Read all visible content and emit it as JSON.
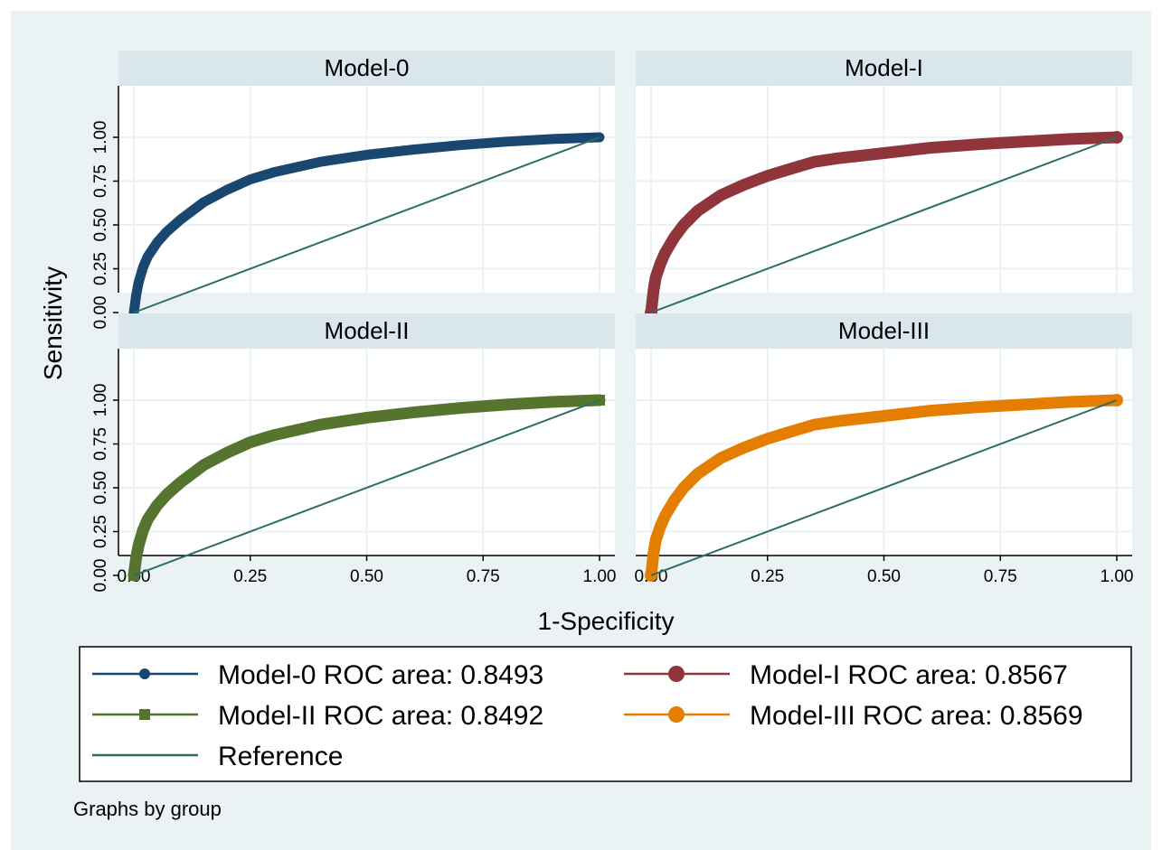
{
  "chart_data": {
    "type": "line",
    "ylabel": "Sensitivity",
    "xlabel": "1-Specificity",
    "note": "Graphs by group",
    "xlim": [
      0,
      1
    ],
    "ylim": [
      0,
      1
    ],
    "x_ticks": [
      "0.00",
      "0.25",
      "0.50",
      "0.75",
      "1.00"
    ],
    "y_ticks": [
      "0.00",
      "0.25",
      "0.50",
      "0.75",
      "1.00"
    ],
    "grid": true,
    "legend_position": "bottom",
    "panels": [
      {
        "title": "Model-0",
        "series_ref": 0,
        "x": [
          0,
          0.005,
          0.01,
          0.02,
          0.03,
          0.05,
          0.07,
          0.1,
          0.15,
          0.2,
          0.25,
          0.3,
          0.4,
          0.5,
          0.6,
          0.7,
          0.8,
          0.9,
          1.0
        ],
        "y": [
          0,
          0.1,
          0.17,
          0.26,
          0.32,
          0.4,
          0.46,
          0.53,
          0.63,
          0.7,
          0.76,
          0.8,
          0.86,
          0.9,
          0.93,
          0.955,
          0.975,
          0.99,
          1.0
        ]
      },
      {
        "title": "Model-I",
        "series_ref": 1,
        "x": [
          0,
          0.005,
          0.01,
          0.02,
          0.03,
          0.05,
          0.07,
          0.1,
          0.15,
          0.2,
          0.25,
          0.3,
          0.35,
          0.4,
          0.5,
          0.6,
          0.7,
          0.8,
          0.9,
          1.0
        ],
        "y": [
          0,
          0.12,
          0.2,
          0.28,
          0.34,
          0.43,
          0.5,
          0.58,
          0.67,
          0.73,
          0.78,
          0.82,
          0.86,
          0.88,
          0.91,
          0.94,
          0.96,
          0.975,
          0.99,
          1.0
        ]
      },
      {
        "title": "Model-II",
        "series_ref": 2,
        "x": [
          0,
          0.005,
          0.01,
          0.02,
          0.03,
          0.05,
          0.07,
          0.1,
          0.15,
          0.2,
          0.25,
          0.3,
          0.4,
          0.5,
          0.6,
          0.7,
          0.8,
          0.9,
          1.0
        ],
        "y": [
          0,
          0.1,
          0.17,
          0.26,
          0.32,
          0.4,
          0.46,
          0.53,
          0.63,
          0.7,
          0.76,
          0.8,
          0.86,
          0.9,
          0.93,
          0.955,
          0.975,
          0.99,
          1.0
        ]
      },
      {
        "title": "Model-III",
        "series_ref": 3,
        "x": [
          0,
          0.005,
          0.01,
          0.02,
          0.03,
          0.05,
          0.07,
          0.1,
          0.15,
          0.2,
          0.25,
          0.3,
          0.35,
          0.4,
          0.5,
          0.6,
          0.7,
          0.8,
          0.9,
          1.0
        ],
        "y": [
          0,
          0.12,
          0.2,
          0.28,
          0.34,
          0.43,
          0.5,
          0.58,
          0.67,
          0.73,
          0.78,
          0.82,
          0.86,
          0.88,
          0.91,
          0.94,
          0.96,
          0.975,
          0.99,
          1.0
        ]
      }
    ],
    "series": [
      {
        "name": "Model-0 ROC area: 0.8493",
        "color": "#1a476f",
        "marker": "circle-small"
      },
      {
        "name": "Model-I ROC area: 0.8567",
        "color": "#90353b",
        "marker": "circle-large"
      },
      {
        "name": "Model-II ROC area: 0.8492",
        "color": "#55752f",
        "marker": "square"
      },
      {
        "name": "Model-III ROC area: 0.8569",
        "color": "#e37e00",
        "marker": "circle-large"
      },
      {
        "name": "Reference",
        "color": "#2d6d66",
        "marker": "none"
      }
    ]
  },
  "colors": {
    "outer_bg": "#eaf2f3",
    "plot_bg": "#ffffff",
    "strip_bg": "#d9e6eb",
    "grid": "#eaf2f3",
    "text": "#000000"
  }
}
